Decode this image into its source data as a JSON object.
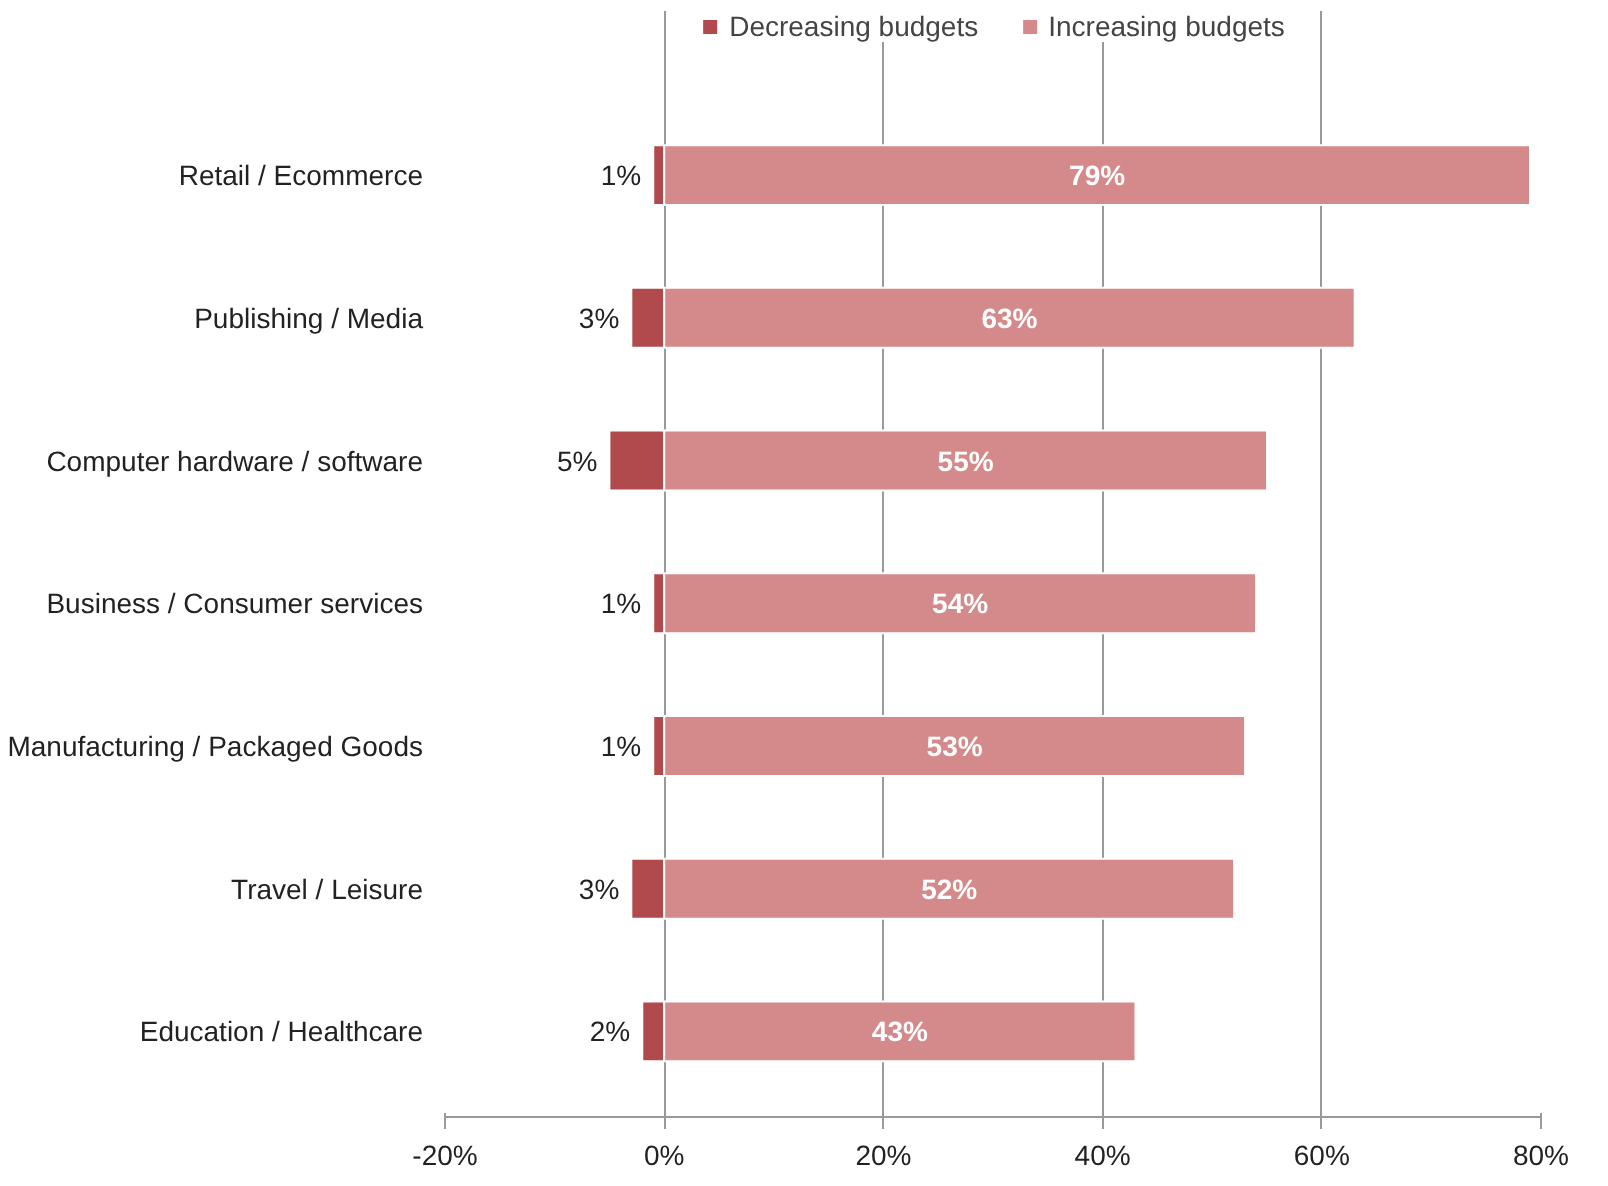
{
  "chart_data": {
    "type": "bar",
    "orientation": "horizontal",
    "categories": [
      "Retail / Ecommerce",
      "Publishing / Media",
      "Computer hardware / software",
      "Business / Consumer services",
      "Manufacturing / Packaged Goods",
      "Travel / Leisure",
      "Education / Healthcare"
    ],
    "series": [
      {
        "name": "Decreasing budgets",
        "color": "#b04a4c",
        "values": [
          1,
          3,
          5,
          1,
          1,
          3,
          2
        ],
        "base": [
          -1,
          -3,
          -5,
          -1,
          -1,
          -3,
          -2
        ],
        "value_labels": [
          "1%",
          "3%",
          "5%",
          "1%",
          "1%",
          "3%",
          "2%"
        ]
      },
      {
        "name": "Increasing budgets",
        "color": "#d4898b",
        "values": [
          79,
          63,
          55,
          54,
          53,
          52,
          43
        ],
        "value_labels": [
          "79%",
          "63%",
          "55%",
          "54%",
          "53%",
          "52%",
          "43%"
        ]
      }
    ],
    "xlim": [
      -20,
      80
    ],
    "xticks": [
      {
        "value": -20,
        "label": "-20%"
      },
      {
        "value": 0,
        "label": "0%"
      },
      {
        "value": 20,
        "label": "20%"
      },
      {
        "value": 40,
        "label": "40%"
      },
      {
        "value": 60,
        "label": "60%"
      },
      {
        "value": 80,
        "label": "80%"
      }
    ],
    "grid": "x",
    "legend": "top"
  }
}
